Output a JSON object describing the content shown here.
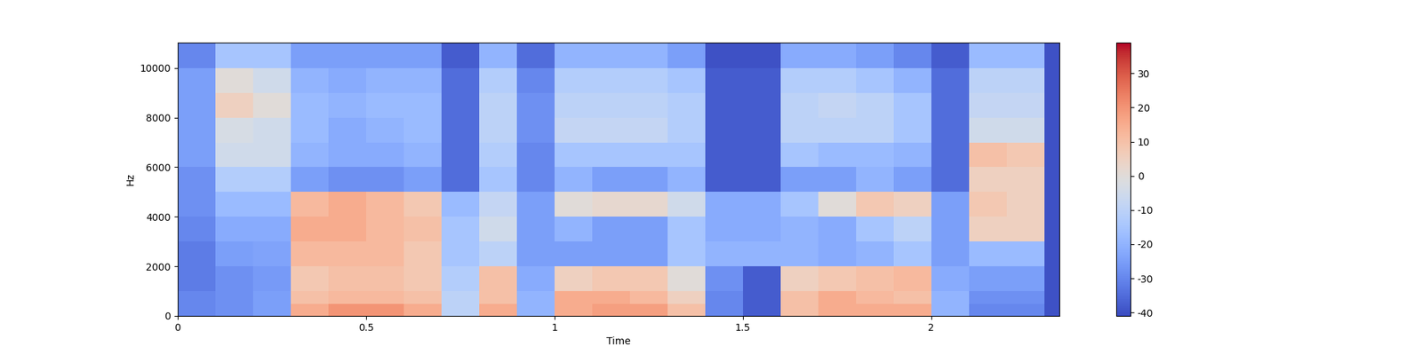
{
  "chart_data": {
    "type": "heatmap",
    "x_label": "Time",
    "y_label": "Hz",
    "color": "coolwarm",
    "xlim": [
      0,
      2.34
    ],
    "ylim": [
      0,
      11025
    ],
    "xticks": [
      0,
      0.5,
      1,
      1.5,
      2
    ],
    "yticks": [
      0,
      2000,
      4000,
      6000,
      8000,
      10000
    ],
    "x_edges": [
      0,
      0.1,
      0.2,
      0.3,
      0.4,
      0.5,
      0.6,
      0.7,
      0.8,
      0.9,
      1.0,
      1.1,
      1.2,
      1.3,
      1.4,
      1.5,
      1.6,
      1.7,
      1.8,
      1.9,
      2.0,
      2.1,
      2.2,
      2.3,
      2.34
    ],
    "y_edges": [
      0,
      500,
      1000,
      2000,
      3000,
      4000,
      5000,
      6000,
      7000,
      8000,
      9000,
      10000,
      11025
    ],
    "cells": [
      [
        -30,
        -28,
        -25,
        15,
        20,
        20,
        15,
        -10,
        15,
        -20,
        15,
        18,
        18,
        10,
        -30,
        -38,
        10,
        15,
        15,
        15,
        -20,
        -30,
        -30,
        -40
      ],
      [
        -30,
        -28,
        -25,
        10,
        12,
        12,
        10,
        -10,
        10,
        -20,
        15,
        15,
        12,
        5,
        -30,
        -38,
        10,
        15,
        12,
        10,
        -20,
        -28,
        -28,
        -40
      ],
      [
        -32,
        -28,
        -26,
        8,
        10,
        10,
        8,
        -12,
        10,
        -22,
        5,
        8,
        8,
        0,
        -28,
        -38,
        5,
        8,
        10,
        12,
        -22,
        -25,
        -25,
        -40
      ],
      [
        -32,
        -25,
        -24,
        12,
        12,
        12,
        8,
        -15,
        -10,
        -25,
        -25,
        -25,
        -25,
        -15,
        -20,
        -20,
        -20,
        -22,
        -20,
        -15,
        -25,
        -18,
        -18,
        -40
      ],
      [
        -30,
        -22,
        -22,
        15,
        15,
        12,
        10,
        -15,
        -5,
        -25,
        -20,
        -25,
        -25,
        -15,
        -22,
        -22,
        -20,
        -22,
        -15,
        -10,
        -25,
        5,
        5,
        -40
      ],
      [
        -28,
        -18,
        -18,
        12,
        15,
        12,
        8,
        -18,
        -8,
        -25,
        0,
        2,
        2,
        -5,
        -22,
        -22,
        -15,
        0,
        8,
        5,
        -25,
        8,
        5,
        -40
      ],
      [
        -28,
        -12,
        -12,
        -25,
        -28,
        -28,
        -25,
        -35,
        -15,
        -30,
        -20,
        -25,
        -25,
        -20,
        -38,
        -38,
        -25,
        -25,
        -20,
        -25,
        -35,
        5,
        5,
        -40
      ],
      [
        -25,
        -5,
        -5,
        -20,
        -22,
        -22,
        -20,
        -35,
        -12,
        -30,
        -15,
        -15,
        -15,
        -15,
        -38,
        -38,
        -15,
        -18,
        -18,
        -20,
        -35,
        10,
        8,
        -40
      ],
      [
        -25,
        -3,
        -5,
        -18,
        -22,
        -20,
        -18,
        -35,
        -10,
        -28,
        -8,
        -8,
        -8,
        -12,
        -38,
        -38,
        -10,
        -10,
        -10,
        -15,
        -35,
        -5,
        -5,
        -40
      ],
      [
        -25,
        5,
        0,
        -18,
        -20,
        -18,
        -18,
        -35,
        -10,
        -28,
        -10,
        -10,
        -10,
        -12,
        -38,
        -38,
        -10,
        -8,
        -10,
        -15,
        -35,
        -8,
        -8,
        -40
      ],
      [
        -25,
        0,
        -5,
        -20,
        -22,
        -20,
        -20,
        -35,
        -12,
        -30,
        -12,
        -12,
        -12,
        -15,
        -38,
        -38,
        -12,
        -12,
        -15,
        -20,
        -35,
        -10,
        -10,
        -40
      ],
      [
        -30,
        -15,
        -15,
        -25,
        -25,
        -25,
        -25,
        -38,
        -20,
        -35,
        -20,
        -20,
        -20,
        -25,
        -40,
        -40,
        -22,
        -22,
        -25,
        -30,
        -38,
        -18,
        -18,
        -40
      ]
    ],
    "colorbar": {
      "range": [
        -41,
        39
      ],
      "ticks": [
        -40,
        -30,
        -20,
        -10,
        0,
        10,
        20,
        30
      ]
    }
  }
}
